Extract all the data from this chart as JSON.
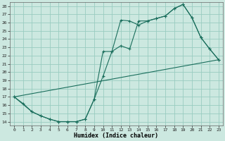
{
  "xlabel": "Humidex (Indice chaleur)",
  "bg_color": "#cce8e0",
  "line_color": "#1a6e5c",
  "grid_color": "#99ccc0",
  "xlim": [
    -0.5,
    23.5
  ],
  "ylim": [
    13.5,
    28.5
  ],
  "xticks": [
    0,
    1,
    2,
    3,
    4,
    5,
    6,
    7,
    8,
    9,
    10,
    11,
    12,
    13,
    14,
    15,
    16,
    17,
    18,
    19,
    20,
    21,
    22,
    23
  ],
  "yticks": [
    14,
    15,
    16,
    17,
    18,
    19,
    20,
    21,
    22,
    23,
    24,
    25,
    26,
    27,
    28
  ],
  "line1_x": [
    0,
    1,
    2,
    3,
    4,
    5,
    6,
    7,
    8,
    9,
    10,
    11,
    12,
    13,
    14,
    15,
    16,
    17,
    18,
    19,
    20,
    21,
    22,
    23
  ],
  "line1_y": [
    17.0,
    16.2,
    15.2,
    14.7,
    14.3,
    14.0,
    14.0,
    14.0,
    14.3,
    16.7,
    19.5,
    22.5,
    26.3,
    26.2,
    25.7,
    26.2,
    26.5,
    26.8,
    27.7,
    28.2,
    26.6,
    24.2,
    22.8,
    21.5
  ],
  "line2_x": [
    0,
    2,
    3,
    4,
    5,
    6,
    7,
    8,
    9,
    10,
    11,
    12,
    13,
    14,
    15,
    16,
    17,
    18,
    19,
    20,
    21,
    22,
    23
  ],
  "line2_y": [
    17.0,
    15.2,
    14.7,
    14.3,
    14.0,
    14.0,
    14.0,
    14.3,
    16.7,
    22.5,
    22.5,
    23.2,
    22.8,
    26.2,
    26.2,
    26.5,
    26.8,
    27.7,
    28.2,
    26.6,
    24.2,
    22.8,
    21.5
  ],
  "line3_x": [
    0,
    23
  ],
  "line3_y": [
    17.0,
    21.5
  ]
}
